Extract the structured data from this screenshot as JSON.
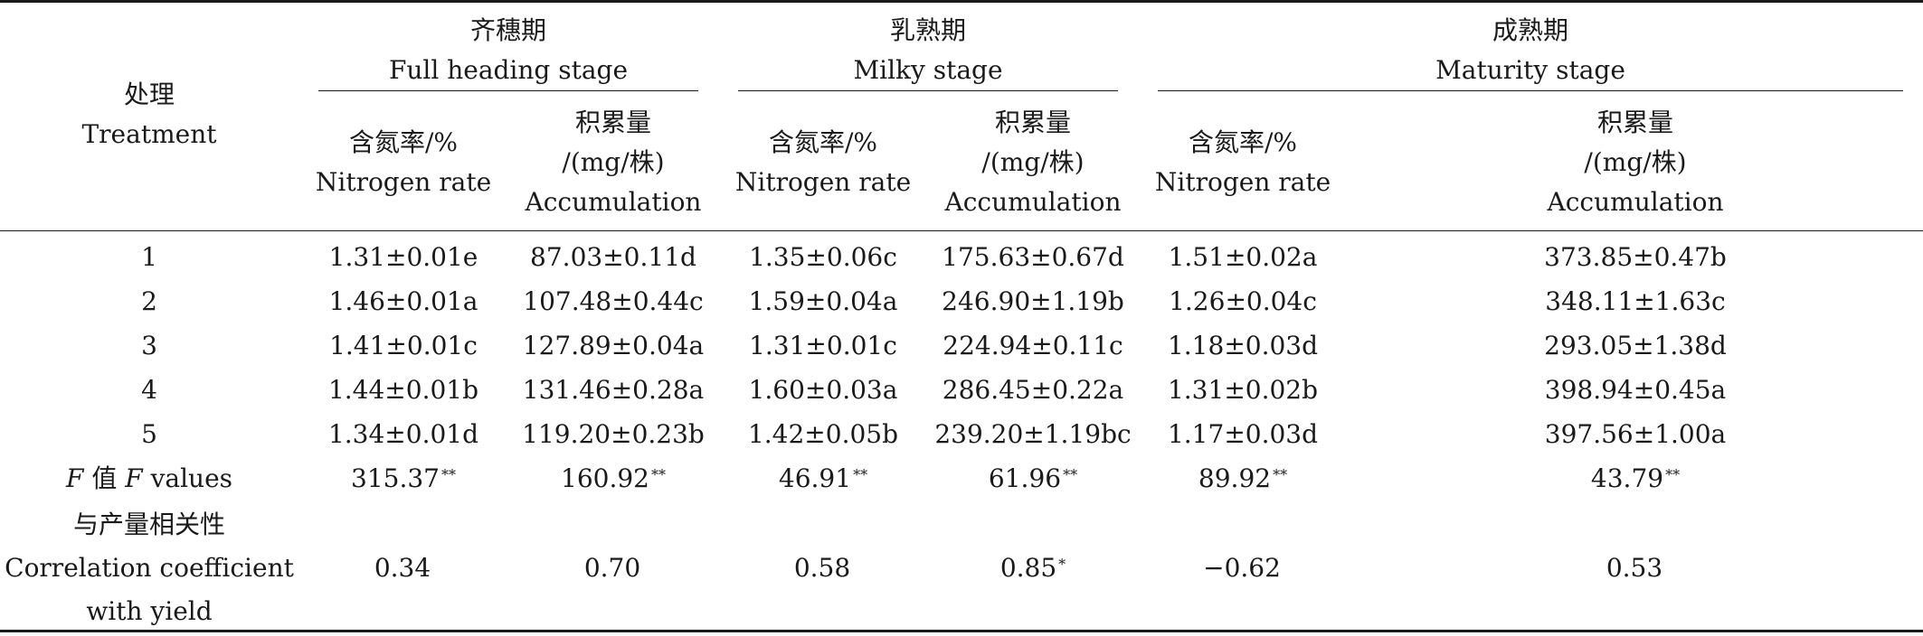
{
  "header": {
    "treatment_zh": "处理",
    "treatment_en": "Treatment",
    "stages": [
      {
        "zh": "齐穗期",
        "en": "Full heading stage"
      },
      {
        "zh": "乳熟期",
        "en": "Milky stage"
      },
      {
        "zh": "成熟期",
        "en": "Maturity stage"
      }
    ],
    "col_nitrogen_zh": "含氮率/%",
    "col_nitrogen_en": "Nitrogen rate",
    "col_accum_zh": "积累量",
    "col_accum_unit": "/(mg/株)",
    "col_accum_en": "Accumulation"
  },
  "rows": [
    {
      "id": "1",
      "values": [
        "1.31±0.01e",
        "87.03±0.11d",
        "1.35±0.06c",
        "175.63±0.67d",
        "1.51±0.02a",
        "373.85±0.47b"
      ]
    },
    {
      "id": "2",
      "values": [
        "1.46±0.01a",
        "107.48±0.44c",
        "1.59±0.04a",
        "246.90±1.19b",
        "1.26±0.04c",
        "348.11±1.63c"
      ]
    },
    {
      "id": "3",
      "values": [
        "1.41±0.01c",
        "127.89±0.04a",
        "1.31±0.01c",
        "224.94±0.11c",
        "1.18±0.03d",
        "293.05±1.38d"
      ]
    },
    {
      "id": "4",
      "values": [
        "1.44±0.01b",
        "131.46±0.28a",
        "1.60±0.03a",
        "286.45±0.22a",
        "1.31±0.02b",
        "398.94±0.45a"
      ]
    },
    {
      "id": "5",
      "values": [
        "1.34±0.01d",
        "119.20±0.23b",
        "1.42±0.05b",
        "239.20±1.19bc",
        "1.17±0.03d",
        "397.56±1.00a"
      ]
    }
  ],
  "f_values": {
    "label_italic": "F",
    "label_zh": "值",
    "label_en": "values",
    "values": [
      "315.37",
      "160.92",
      "46.91",
      "61.96",
      "89.92",
      "43.79"
    ],
    "marks": [
      "**",
      "**",
      "**",
      "**",
      "**",
      "**"
    ]
  },
  "correlation": {
    "label_zh": "与产量相关性",
    "label_en_1": "Correlation coefficient",
    "label_en_2": "with yield",
    "values": [
      "0.34",
      "0.70",
      "0.58",
      "0.85",
      "−0.62",
      "0.53"
    ],
    "marks": [
      "",
      "",
      "",
      "*",
      "",
      ""
    ]
  }
}
